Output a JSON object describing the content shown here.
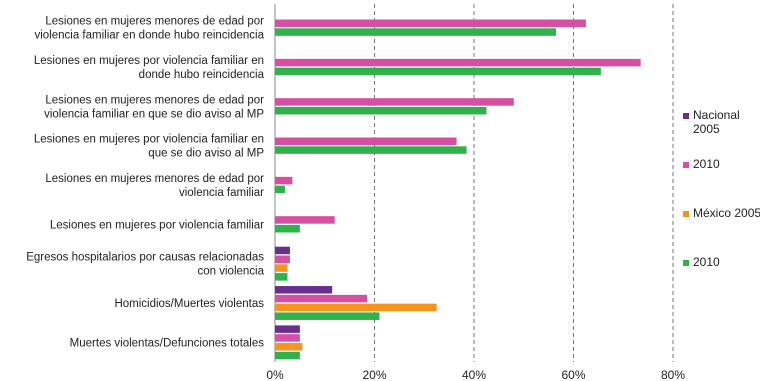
{
  "chart_data": {
    "type": "bar",
    "orientation": "horizontal",
    "title": "",
    "xlabel": "",
    "ylabel": "",
    "xlim": [
      0,
      80
    ],
    "x_ticks": [
      "0%",
      "20%",
      "40%",
      "60%",
      "80%"
    ],
    "grid": "vertical dashed",
    "legend_position": "right",
    "categories": [
      [
        "Lesiones en mujeres menores de edad por",
        "violencia familiar en donde hubo reincidencia"
      ],
      [
        "Lesiones en mujeres por violencia familiar en",
        "donde hubo reincidencia"
      ],
      [
        "Lesiones en mujeres menores de edad por",
        "violencia familiar en que se dio aviso al MP"
      ],
      [
        "Lesiones en mujeres por violencia familiar en",
        "que se dio aviso al MP"
      ],
      [
        "Lesiones en mujeres menores de edad por",
        "violencia familiar"
      ],
      [
        "Lesiones en mujeres por violencia familiar"
      ],
      [
        "Egresos hospitalarios por causas relacionadas",
        "con violencia"
      ],
      [
        "Homicidios/Muertes violentas"
      ],
      [
        "Muertes violentas/Defunciones totales"
      ]
    ],
    "series": [
      {
        "name": "Nacional 2005",
        "legend_lines": [
          "Nacional",
          "2005"
        ],
        "color": "#6a2e8f",
        "values": [
          null,
          null,
          null,
          null,
          null,
          null,
          3,
          11.5,
          5
        ]
      },
      {
        "name": "2010",
        "legend_lines": [
          "2010"
        ],
        "color": "#d64fa3",
        "values": [
          62.5,
          73.5,
          48,
          36.5,
          3.5,
          12,
          3,
          18.5,
          5
        ]
      },
      {
        "name": "México 2005",
        "legend_lines": [
          "México 2005"
        ],
        "color": "#f7941d",
        "values": [
          null,
          null,
          null,
          null,
          null,
          null,
          2.5,
          32.5,
          5.5
        ]
      },
      {
        "name": "2010",
        "legend_lines": [
          "2010"
        ],
        "color": "#2fb24a",
        "values": [
          56.5,
          65.5,
          42.5,
          38.5,
          2,
          5,
          2.5,
          21,
          5
        ]
      }
    ]
  }
}
